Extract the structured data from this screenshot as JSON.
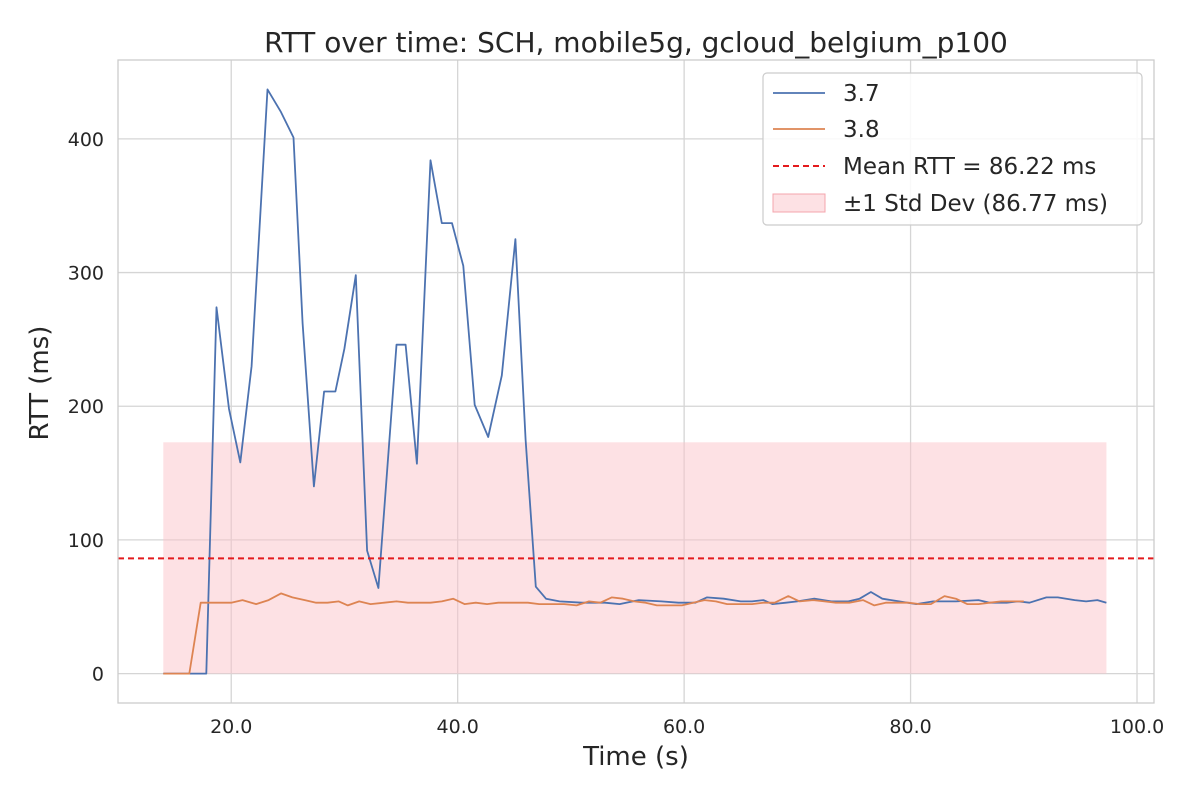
{
  "chart_data": {
    "type": "line",
    "title": "RTT over time: SCH, mobile5g, gcloud_belgium_p100",
    "xlabel": "Time (s)",
    "ylabel": "RTT (ms)",
    "xlim": [
      10,
      101.5
    ],
    "ylim": [
      -22,
      459
    ],
    "xticks": [
      20,
      40,
      60,
      80,
      100
    ],
    "xtick_labels": [
      "20.0",
      "40.0",
      "60.0",
      "80.0",
      "100.0"
    ],
    "yticks": [
      0,
      100,
      200,
      300,
      400
    ],
    "ytick_labels": [
      "0",
      "100",
      "200",
      "300",
      "400"
    ],
    "grid": true,
    "legend_position": "top-right",
    "series": [
      {
        "name": "3.7",
        "color": "#4c72b0",
        "points": [
          [
            14,
            0
          ],
          [
            15,
            0
          ],
          [
            16,
            0
          ],
          [
            17,
            0
          ],
          [
            17.8,
            0
          ],
          [
            18.7,
            274
          ],
          [
            19.8,
            198
          ],
          [
            20.8,
            158
          ],
          [
            21.8,
            230
          ],
          [
            23.2,
            437
          ],
          [
            24.4,
            420
          ],
          [
            25.5,
            401
          ],
          [
            26.3,
            262
          ],
          [
            27.3,
            140
          ],
          [
            28.2,
            211
          ],
          [
            29.2,
            211
          ],
          [
            30,
            243
          ],
          [
            31,
            298
          ],
          [
            32,
            92
          ],
          [
            33,
            64
          ],
          [
            34.6,
            246
          ],
          [
            35.4,
            246
          ],
          [
            36.4,
            157
          ],
          [
            37.6,
            384
          ],
          [
            38.6,
            337
          ],
          [
            39.5,
            337
          ],
          [
            40.5,
            305
          ],
          [
            41.5,
            201
          ],
          [
            42.7,
            177
          ],
          [
            43.9,
            223
          ],
          [
            45.1,
            325
          ],
          [
            46,
            175
          ],
          [
            46.9,
            65
          ],
          [
            47.8,
            56
          ],
          [
            49,
            54
          ],
          [
            51,
            53
          ],
          [
            53,
            53
          ],
          [
            54.3,
            52
          ],
          [
            56,
            55
          ],
          [
            58,
            54
          ],
          [
            59.5,
            53
          ],
          [
            61,
            53
          ],
          [
            62,
            57
          ],
          [
            63.5,
            56
          ],
          [
            65,
            54
          ],
          [
            66,
            54
          ],
          [
            67,
            55
          ],
          [
            67.8,
            52
          ],
          [
            69,
            53
          ],
          [
            70,
            54
          ],
          [
            71.5,
            56
          ],
          [
            73,
            54
          ],
          [
            74.5,
            54
          ],
          [
            75.5,
            56
          ],
          [
            76.5,
            61
          ],
          [
            77.5,
            56
          ],
          [
            79,
            54
          ],
          [
            80.5,
            52
          ],
          [
            82,
            54
          ],
          [
            84,
            54
          ],
          [
            86,
            55
          ],
          [
            87,
            53
          ],
          [
            88.5,
            53
          ],
          [
            89.5,
            54
          ],
          [
            90.5,
            53
          ],
          [
            92,
            57
          ],
          [
            93,
            57
          ],
          [
            94.5,
            55
          ],
          [
            95.5,
            54
          ],
          [
            96.5,
            55
          ],
          [
            97.3,
            53
          ]
        ]
      },
      {
        "name": "3.8",
        "color": "#dd8452",
        "points": [
          [
            14,
            0
          ],
          [
            16.3,
            0
          ],
          [
            17.3,
            53
          ],
          [
            18.3,
            53
          ],
          [
            19.3,
            53
          ],
          [
            20,
            53
          ],
          [
            21,
            55
          ],
          [
            22.2,
            52
          ],
          [
            23.3,
            55
          ],
          [
            24.4,
            60
          ],
          [
            25.4,
            57
          ],
          [
            26.5,
            55
          ],
          [
            27.5,
            53
          ],
          [
            28.5,
            53
          ],
          [
            29.5,
            54
          ],
          [
            30.3,
            51
          ],
          [
            31.3,
            54
          ],
          [
            32.3,
            52
          ],
          [
            33.5,
            53
          ],
          [
            34.6,
            54
          ],
          [
            35.6,
            53
          ],
          [
            36.6,
            53
          ],
          [
            37.6,
            53
          ],
          [
            38.6,
            54
          ],
          [
            39.6,
            56
          ],
          [
            40.6,
            52
          ],
          [
            41.6,
            53
          ],
          [
            42.6,
            52
          ],
          [
            43.6,
            53
          ],
          [
            45,
            53
          ],
          [
            46.2,
            53
          ],
          [
            47.2,
            52
          ],
          [
            48.2,
            52
          ],
          [
            49.4,
            52
          ],
          [
            50.5,
            51
          ],
          [
            51.6,
            54
          ],
          [
            52.6,
            53
          ],
          [
            53.6,
            57
          ],
          [
            54.6,
            56
          ],
          [
            55.6,
            54
          ],
          [
            56.6,
            53
          ],
          [
            57.6,
            51
          ],
          [
            58.8,
            51
          ],
          [
            59.8,
            51
          ],
          [
            60.8,
            53
          ],
          [
            61.8,
            55
          ],
          [
            62.8,
            54
          ],
          [
            63.8,
            52
          ],
          [
            65,
            52
          ],
          [
            66,
            52
          ],
          [
            67,
            53
          ],
          [
            68,
            53
          ],
          [
            69.2,
            58
          ],
          [
            70.2,
            54
          ],
          [
            71.4,
            55
          ],
          [
            72.4,
            54
          ],
          [
            73.4,
            53
          ],
          [
            74.6,
            53
          ],
          [
            75.8,
            55
          ],
          [
            76.8,
            51
          ],
          [
            77.8,
            53
          ],
          [
            78.8,
            53
          ],
          [
            79.8,
            53
          ],
          [
            80.8,
            52
          ],
          [
            81.8,
            52
          ],
          [
            83,
            58
          ],
          [
            84,
            56
          ],
          [
            85,
            52
          ],
          [
            86,
            52
          ],
          [
            87,
            53
          ],
          [
            88,
            54
          ],
          [
            89,
            54
          ],
          [
            90,
            54
          ]
        ]
      }
    ],
    "mean_line": {
      "label": "Mean RTT = 86.22 ms",
      "value": 86.22,
      "color": "#e41a1c"
    },
    "std_band": {
      "label": "±1 Std Dev (86.77 ms)",
      "lower": 0,
      "upper": 173,
      "x_start": 14,
      "x_end": 97.3,
      "color": "#fbc4c9"
    }
  }
}
